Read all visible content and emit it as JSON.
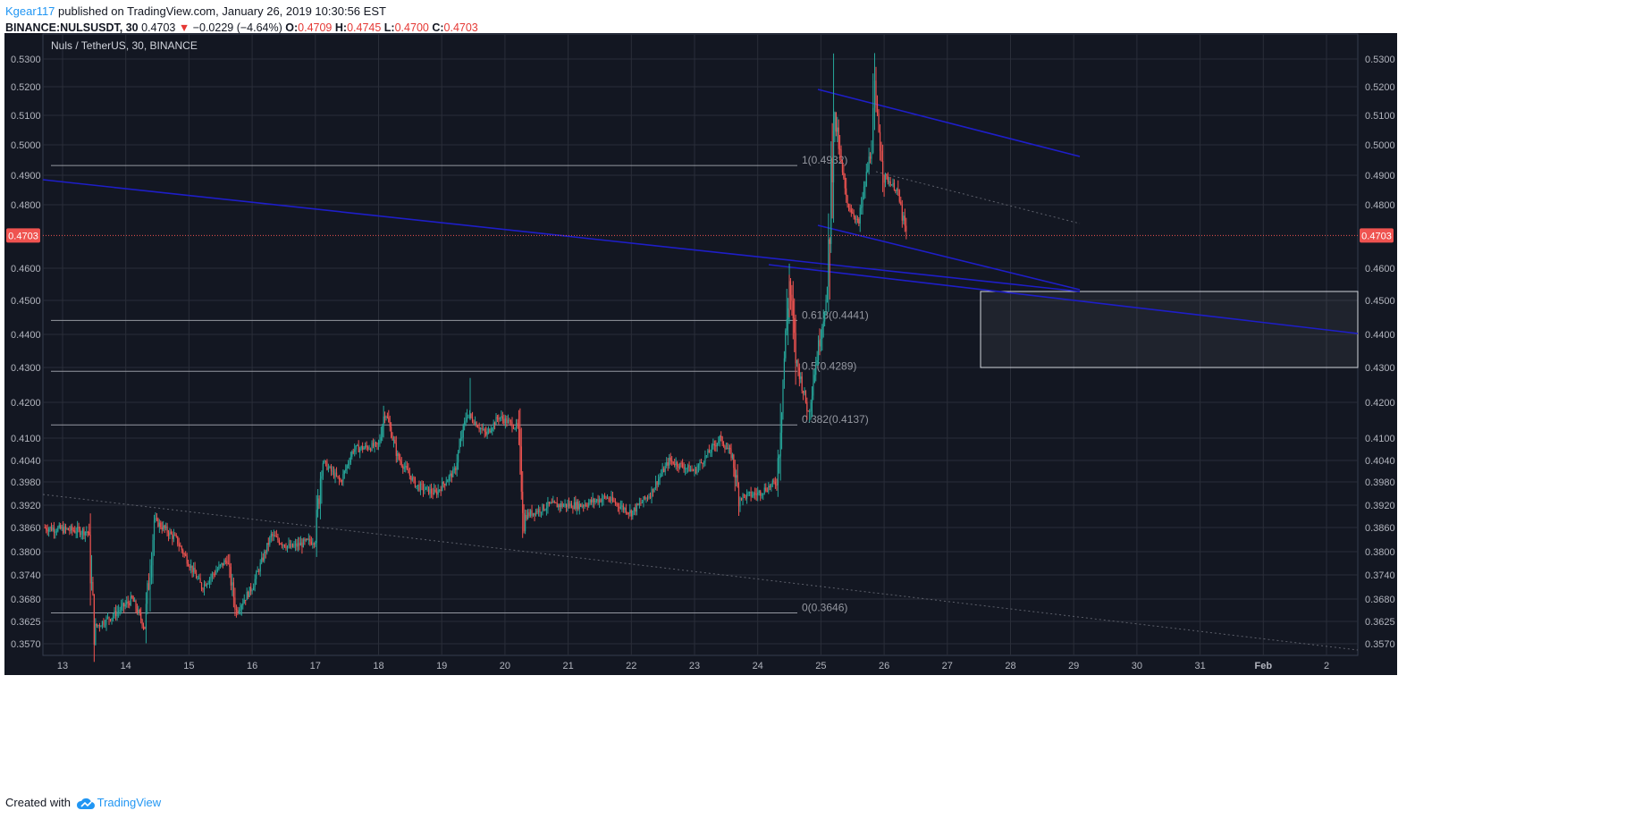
{
  "header": {
    "author": "Kgear117",
    "published_text": " published on TradingView.com, January 26, 2019 10:30:56 EST",
    "symbol": "BINANCE:NULSUSDT, 30",
    "last": "0.4703",
    "change": "−0.0229 (−4.64%)",
    "o_label": "O:",
    "o_value": "0.4709",
    "h_label": "H:",
    "h_value": "0.4745",
    "l_label": "L:",
    "l_value": "0.4700",
    "c_label": "C:",
    "c_value": "0.4703"
  },
  "footer": {
    "created_with": "Created with",
    "brand": "TradingView"
  },
  "chart_data": {
    "type": "candlestick",
    "title": "Nuls / TetherUS, 30, BINANCE",
    "current_price": "0.4703",
    "y_ticks": [
      "0.5300",
      "0.5200",
      "0.5100",
      "0.5000",
      "0.4900",
      "0.4800",
      "0.4600",
      "0.4500",
      "0.4400",
      "0.4300",
      "0.4200",
      "0.4100",
      "0.4040",
      "0.3980",
      "0.3920",
      "0.3860",
      "0.3800",
      "0.3740",
      "0.3680",
      "0.3625",
      "0.3570"
    ],
    "x_ticks": [
      "13",
      "14",
      "15",
      "16",
      "17",
      "18",
      "19",
      "20",
      "21",
      "22",
      "23",
      "24",
      "25",
      "26",
      "27",
      "28",
      "29",
      "30",
      "31",
      "Feb",
      "2"
    ],
    "fib_levels": [
      {
        "label": "1(0.4932)",
        "value": 0.4932
      },
      {
        "label": "0.618(0.4441)",
        "value": 0.4441
      },
      {
        "label": "0.5(0.4289)",
        "value": 0.4289
      },
      {
        "label": "0.382(0.4137)",
        "value": 0.4137
      },
      {
        "label": "0(0.3646)",
        "value": 0.3646
      }
    ],
    "price_path": [
      [
        "12.7",
        0.386
      ],
      [
        "13.4",
        0.385
      ],
      [
        "13.5",
        0.361
      ],
      [
        "13.8",
        0.364
      ],
      [
        "14.1",
        0.368
      ],
      [
        "14.3",
        0.361
      ],
      [
        "14.45",
        0.388
      ],
      [
        "14.8",
        0.383
      ],
      [
        "15.2",
        0.371
      ],
      [
        "15.6",
        0.378
      ],
      [
        "15.75",
        0.365
      ],
      [
        "16.0",
        0.371
      ],
      [
        "16.3",
        0.384
      ],
      [
        "16.6",
        0.381
      ],
      [
        "17.0",
        0.383
      ],
      [
        "17.1",
        0.404
      ],
      [
        "17.4",
        0.398
      ],
      [
        "17.6",
        0.407
      ],
      [
        "18.0",
        0.408
      ],
      [
        "18.1",
        0.418
      ],
      [
        "18.3",
        0.405
      ],
      [
        "18.6",
        0.397
      ],
      [
        "18.9",
        0.395
      ],
      [
        "19.2",
        0.401
      ],
      [
        "19.4",
        0.417
      ],
      [
        "19.7",
        0.411
      ],
      [
        "19.9",
        0.416
      ],
      [
        "20.2",
        0.413
      ],
      [
        "20.3",
        0.389
      ],
      [
        "20.7",
        0.392
      ],
      [
        "21.2",
        0.392
      ],
      [
        "21.6",
        0.394
      ],
      [
        "22.0",
        0.39
      ],
      [
        "22.3",
        0.395
      ],
      [
        "22.6",
        0.404
      ],
      [
        "23.0",
        0.401
      ],
      [
        "23.4",
        0.41
      ],
      [
        "23.6",
        0.405
      ],
      [
        "23.7",
        0.394
      ],
      [
        "24.0",
        0.395
      ],
      [
        "24.3",
        0.398
      ],
      [
        "24.5",
        0.456
      ],
      [
        "24.6",
        0.433
      ],
      [
        "24.8",
        0.417
      ],
      [
        "25.0",
        0.441
      ],
      [
        "25.1",
        0.452
      ],
      [
        "25.2",
        0.512
      ],
      [
        "25.4",
        0.481
      ],
      [
        "25.6",
        0.474
      ],
      [
        "25.8",
        0.5
      ],
      [
        "25.85",
        0.515
      ],
      [
        "26.0",
        0.49
      ],
      [
        "26.2",
        0.485
      ],
      [
        "26.35",
        0.4703
      ]
    ]
  }
}
